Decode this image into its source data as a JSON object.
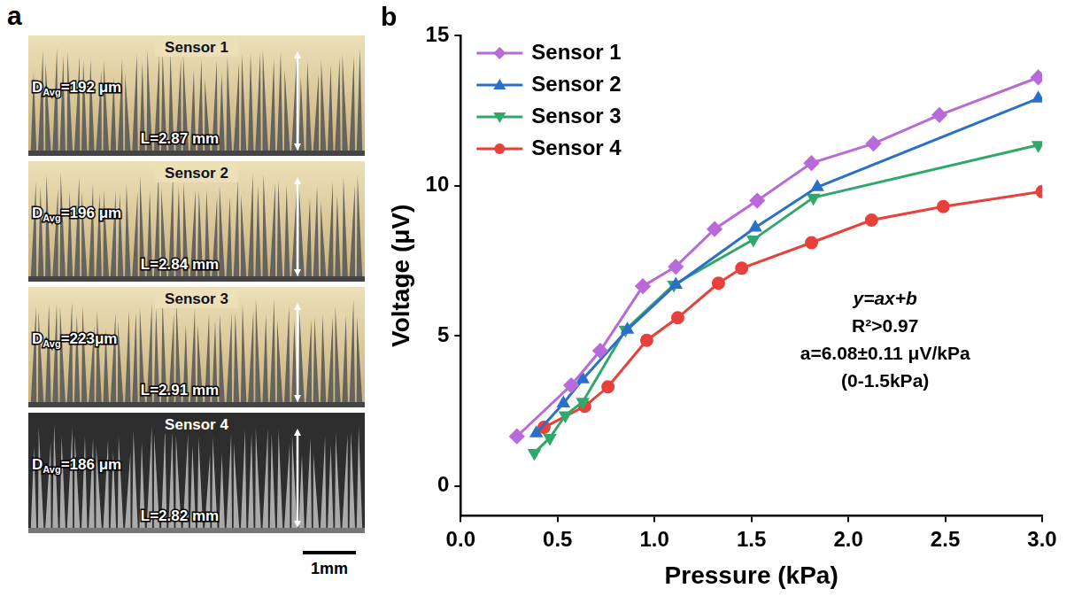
{
  "panel_a": {
    "letter": "a",
    "scale_bar": "1mm",
    "sensors": [
      {
        "name": "Sensor 1",
        "d_symbol": "D",
        "d_subscript": "Avg",
        "d_value": "=192 μm",
        "length": "L=2.87 mm"
      },
      {
        "name": "Sensor 2",
        "d_symbol": "D",
        "d_subscript": "Avg",
        "d_value": "=196 μm",
        "length": "L=2.84 mm"
      },
      {
        "name": "Sensor 3",
        "d_symbol": "D",
        "d_subscript": "Avg",
        "d_value": "=223μm",
        "length": "L=2.91 mm"
      },
      {
        "name": "Sensor 4",
        "d_symbol": "D",
        "d_subscript": "Avg",
        "d_value": "=186 μm",
        "length": "L=2.82 mm"
      }
    ]
  },
  "panel_b": {
    "letter": "b"
  },
  "chart_data": {
    "type": "line",
    "x_label": "Pressure (kPa)",
    "y_label": "Voltage (μV)",
    "xlim": [
      0,
      3
    ],
    "ylim": [
      -1,
      15
    ],
    "xticks": [
      {
        "value": 0,
        "label": "0.0"
      },
      0.5,
      {
        "value": 1,
        "label": "1.0"
      },
      1.5,
      {
        "value": 2,
        "label": "2.0"
      },
      2.5,
      {
        "value": 3,
        "label": "3.0"
      }
    ],
    "yticks": [
      0,
      5,
      10,
      15
    ],
    "grid": false,
    "legend": "upper left",
    "annotations": [
      "y=ax+b",
      "R²>0.97",
      "a=6.08±0.11 μV/kPa",
      "(0-1.5kPa)"
    ],
    "series": [
      {
        "name": "Sensor 1",
        "color": "#b86ad8",
        "marker": "diamond",
        "x": [
          0.29,
          0.57,
          0.72,
          0.94,
          1.11,
          1.31,
          1.53,
          1.81,
          2.13,
          2.47,
          2.98
        ],
        "values": [
          1.65,
          3.35,
          4.5,
          6.65,
          7.3,
          8.55,
          9.5,
          10.75,
          11.4,
          12.35,
          13.6
        ]
      },
      {
        "name": "Sensor 2",
        "color": "#2a6fc9",
        "marker": "triangle",
        "x": [
          0.39,
          0.53,
          0.63,
          0.86,
          1.11,
          1.52,
          1.84,
          2.98
        ],
        "values": [
          1.75,
          2.75,
          3.55,
          5.2,
          6.7,
          8.6,
          9.95,
          12.9
        ]
      },
      {
        "name": "Sensor 3",
        "color": "#2fa86a",
        "marker": "triangle_down",
        "x": [
          0.38,
          0.46,
          0.54,
          0.63,
          0.85,
          1.1,
          1.51,
          1.82,
          2.98
        ],
        "values": [
          1.1,
          1.6,
          2.35,
          2.8,
          5.2,
          6.7,
          8.2,
          9.6,
          11.35
        ]
      },
      {
        "name": "Sensor 4",
        "color": "#e8403a",
        "marker": "circle",
        "x": [
          0.43,
          0.64,
          0.76,
          0.96,
          1.12,
          1.33,
          1.45,
          1.81,
          2.12,
          2.49,
          3.0
        ],
        "values": [
          1.95,
          2.65,
          3.3,
          4.85,
          5.6,
          6.75,
          7.25,
          8.1,
          8.85,
          9.3,
          9.8
        ]
      }
    ]
  }
}
